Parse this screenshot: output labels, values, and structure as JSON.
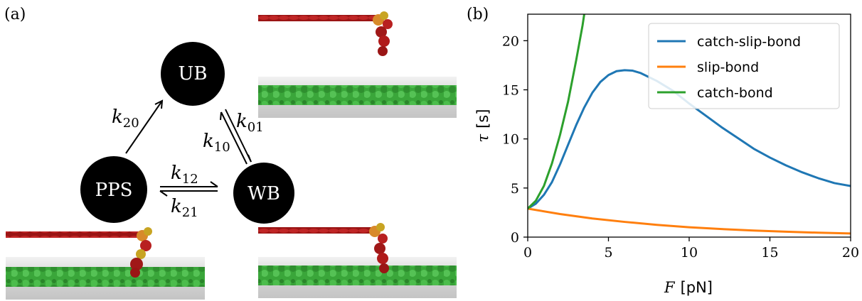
{
  "panel_a": {
    "label": "(a)",
    "states": [
      {
        "id": "UB",
        "label": "UB"
      },
      {
        "id": "PPS",
        "label": "PPS"
      },
      {
        "id": "WB",
        "label": "WB"
      }
    ],
    "rates": [
      {
        "id": "k20",
        "base": "k",
        "sub": "20"
      },
      {
        "id": "k01",
        "base": "k",
        "sub": "01"
      },
      {
        "id": "k10",
        "base": "k",
        "sub": "10"
      },
      {
        "id": "k12",
        "base": "k",
        "sub": "12"
      },
      {
        "id": "k21",
        "base": "k",
        "sub": "21"
      }
    ],
    "colors": {
      "actin": "#3aa63a",
      "myosin_tail": "#a01818",
      "myosin_head": "#d88a2a",
      "surface": "#cfcfcf"
    }
  },
  "panel_b": {
    "label": "(b)",
    "chart_data": {
      "type": "line",
      "xlabel_var": "F",
      "xlabel_unit": "[pN]",
      "ylabel_var": "τ",
      "ylabel_unit": "[s]",
      "xlim": [
        0,
        20
      ],
      "ylim": [
        0,
        22.7
      ],
      "xticks": [
        0,
        5,
        10,
        15,
        20
      ],
      "yticks": [
        0,
        5,
        10,
        15,
        20
      ],
      "grid": false,
      "legend_position": "top-right",
      "series": [
        {
          "name": "catch-slip-bond",
          "color": "#1f77b4",
          "x": [
            0,
            0.5,
            1,
            1.5,
            2,
            2.5,
            3,
            3.5,
            4,
            4.5,
            5,
            5.5,
            6,
            6.5,
            7,
            8,
            9,
            10,
            11,
            12,
            13,
            14,
            15,
            16,
            17,
            18,
            19,
            20
          ],
          "y": [
            2.9,
            3.4,
            4.3,
            5.6,
            7.4,
            9.4,
            11.4,
            13.2,
            14.7,
            15.8,
            16.5,
            16.9,
            17.0,
            16.95,
            16.7,
            15.9,
            14.9,
            13.6,
            12.4,
            11.2,
            10.1,
            9.0,
            8.1,
            7.3,
            6.6,
            6.0,
            5.5,
            5.2
          ]
        },
        {
          "name": "slip-bond",
          "color": "#ff7f0e",
          "x": [
            0,
            2,
            4,
            6,
            8,
            10,
            12,
            14,
            16,
            18,
            20
          ],
          "y": [
            2.9,
            2.35,
            1.9,
            1.55,
            1.25,
            1.0,
            0.82,
            0.67,
            0.55,
            0.45,
            0.37
          ]
        },
        {
          "name": "catch-bond",
          "color": "#2ca02c",
          "x": [
            0,
            0.5,
            1,
            1.5,
            2,
            2.5,
            3,
            3.2,
            3.4,
            3.5
          ],
          "y": [
            2.9,
            3.7,
            5.2,
            7.5,
            10.4,
            13.8,
            18.0,
            19.8,
            21.6,
            22.7
          ]
        }
      ]
    }
  }
}
